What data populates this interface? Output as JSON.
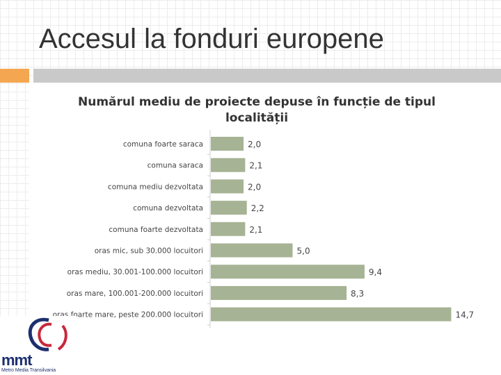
{
  "slide": {
    "title": "Accesul la fonduri europene"
  },
  "colors": {
    "bar": "#a6b394",
    "accent_orange": "#f5a650",
    "strip_gray": "#c9c9c9",
    "logo_navy": "#1d2f6f",
    "logo_red": "#c8283a"
  },
  "logo": {
    "icon": "mmt-logo-icon",
    "text": "mmt",
    "subtitle": "Metro Media Transilvania"
  },
  "chart_data": {
    "type": "bar",
    "orientation": "horizontal",
    "title": "Numărul mediu de proiecte depuse în funcție de tipul localității",
    "title_lines": [
      "Numărul mediu de proiecte depuse în funcție de tipul",
      "localității"
    ],
    "categories": [
      "comuna foarte saraca",
      "comuna saraca",
      "comuna mediu dezvoltata",
      "comuna dezvoltata",
      "comuna foarte dezvoltata",
      "oras mic, sub 30.000 locuitori",
      "oras mediu, 30.001-100.000 locuitori",
      "oras mare, 100.001-200.000 locuitori",
      "oras foarte mare, peste 200.000 locuitori"
    ],
    "values": [
      2.0,
      2.1,
      2.0,
      2.2,
      2.1,
      5.0,
      9.4,
      8.3,
      14.7
    ],
    "value_labels": [
      "2,0",
      "2,1",
      "2,0",
      "2,2",
      "2,1",
      "5,0",
      "9,4",
      "8,3",
      "14,7"
    ],
    "xlim": [
      0,
      15
    ],
    "grid": false,
    "legend": "none"
  }
}
